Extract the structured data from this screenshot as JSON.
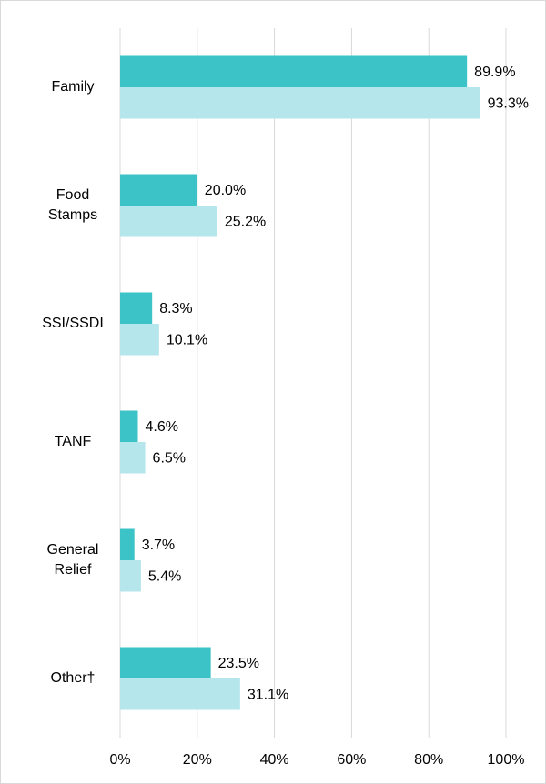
{
  "chart_data": {
    "type": "bar",
    "orientation": "horizontal",
    "categories": [
      "Family",
      "Food Stamps",
      "SSI/SSDI",
      "TANF",
      "General Relief",
      "Other†"
    ],
    "series": [
      {
        "color": "#3cc3c8",
        "values": [
          89.9,
          20.0,
          8.3,
          4.6,
          3.7,
          23.5
        ],
        "value_labels": [
          "89.9%",
          "20.0%",
          "8.3%",
          "4.6%",
          "3.7%",
          "23.5%"
        ]
      },
      {
        "color": "#b5e6eb",
        "values": [
          93.3,
          25.2,
          10.1,
          6.5,
          5.4,
          31.1
        ],
        "value_labels": [
          "93.3%",
          "25.2%",
          "10.1%",
          "6.5%",
          "5.4%",
          "31.1%"
        ]
      }
    ],
    "xlim": [
      0,
      100
    ],
    "xticks": [
      {
        "value": 0,
        "label": "0%"
      },
      {
        "value": 20,
        "label": "20%"
      },
      {
        "value": 40,
        "label": "40%"
      },
      {
        "value": 60,
        "label": "60%"
      },
      {
        "value": 80,
        "label": "80%"
      },
      {
        "value": 100,
        "label": "100%"
      }
    ],
    "grid": true
  }
}
